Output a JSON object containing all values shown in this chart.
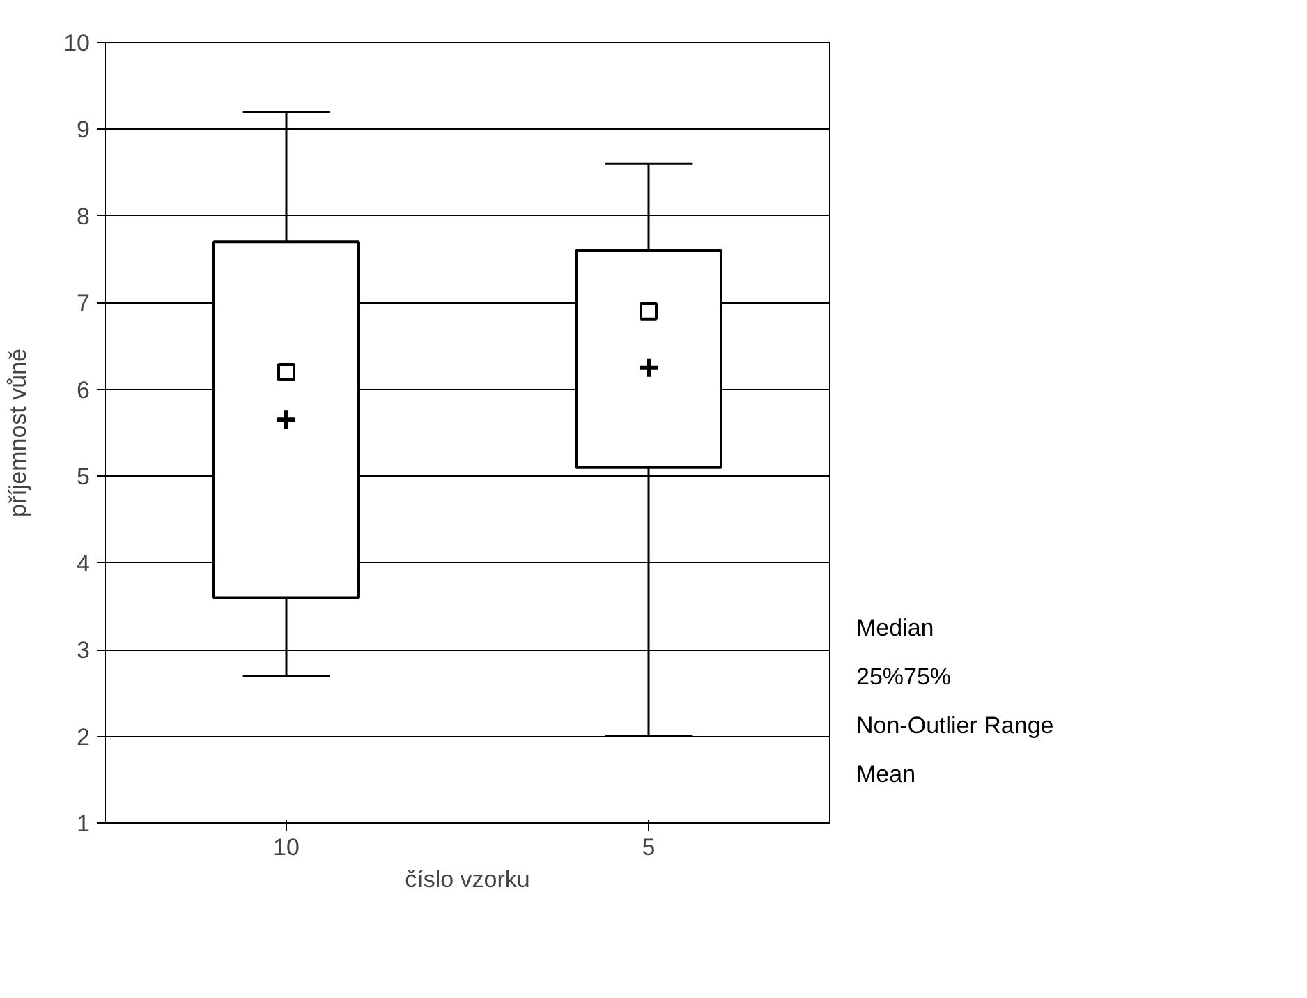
{
  "chart_data": {
    "type": "box",
    "xlabel": "číslo vzorku",
    "ylabel": "příjemnost vůně",
    "categories": [
      "10",
      "5"
    ],
    "boxes": [
      {
        "low": 2.7,
        "q1": 3.6,
        "median": 6.2,
        "q3": 7.7,
        "high": 9.2,
        "mean": 5.65
      },
      {
        "low": 2.0,
        "q1": 5.1,
        "median": 6.9,
        "q3": 7.6,
        "high": 8.6,
        "mean": 6.25
      }
    ],
    "color": "#000000",
    "ylim": [
      1,
      10
    ],
    "yticks": [
      1,
      2,
      3,
      4,
      5,
      6,
      7,
      8,
      9,
      10
    ],
    "grid": "y",
    "annotations": [
      "Median",
      "25%75%",
      "Non-Outlier Range",
      "Mean"
    ]
  }
}
